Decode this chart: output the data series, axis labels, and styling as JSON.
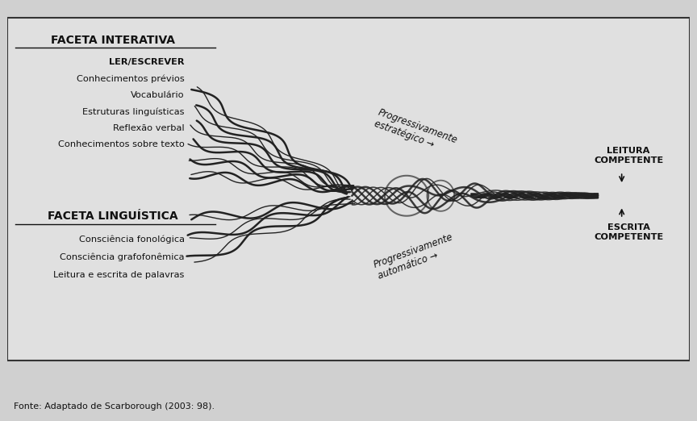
{
  "bg_color": "#d0d0d0",
  "box_color": "#e0e0e0",
  "box_border": "#333333",
  "text_color": "#111111",
  "rope_color": "#222222",
  "title_top": "FACETA INTERATIVA",
  "items_top": [
    "LER/ESCREVER",
    "Conhecimentos prévios",
    "Vocabulário",
    "Estruturas linguísticas",
    "Reflexão verbal",
    "Conhecimentos sobre texto"
  ],
  "title_bottom": "FACETA LINGUÍSTICA",
  "items_bottom": [
    "Consciência fonológica",
    "Consciência grafofonêmica",
    "Leitura e escrita de palavras"
  ],
  "label_top_rope": "Progressivamente\nestratégico →",
  "label_bottom_rope": "Progressivamente\nautomático →",
  "label_right_top": "LEITURA\nCOMPETENTE",
  "label_right_bottom": "ESCRITA\nCOMPETENTE",
  "footer": "Fonte: Adaptado de Scarborough (2003: 98).",
  "fig_width": 8.64,
  "fig_height": 5.22,
  "dpi": 100
}
